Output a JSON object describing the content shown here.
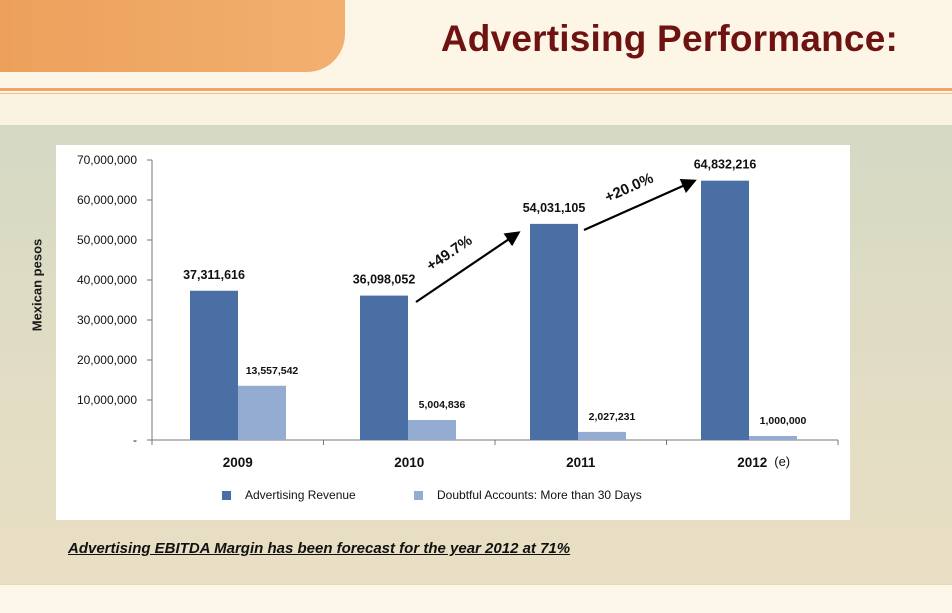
{
  "header": {
    "title": "Advertising Performance:"
  },
  "footnote": "Advertising EBITDA Margin has been forecast for the year 2012 at 71%",
  "colors": {
    "revenue": "#4a6fa5",
    "doubtful": "#94acd1",
    "title": "#6e1212",
    "accent_orange": "#eca05a"
  },
  "chart_data": {
    "type": "bar",
    "ylabel": "Mexican pesos",
    "xlabel": "",
    "categories": [
      "2009",
      "2010",
      "2011",
      "2012"
    ],
    "category_note": "(e)",
    "ylim": [
      0,
      70000000
    ],
    "yticks": [
      0,
      10000000,
      20000000,
      30000000,
      40000000,
      50000000,
      60000000,
      70000000
    ],
    "ytick_labels": [
      "-",
      "10,000,000",
      "20,000,000",
      "30,000,000",
      "40,000,000",
      "50,000,000",
      "60,000,000",
      "70,000,000"
    ],
    "grid": false,
    "legend": "bottom",
    "series": [
      {
        "name": "Advertising Revenue",
        "values": [
          37311616,
          36098052,
          54031105,
          64832216
        ],
        "labels": [
          "37,311,616",
          "36,098,052",
          "54,031,105",
          "64,832,216"
        ]
      },
      {
        "name": "Doubtful Accounts: More than 30 Days",
        "values": [
          13557542,
          5004836,
          2027231,
          1000000
        ],
        "labels": [
          "13,557,542",
          "5,004,836",
          "2,027,231",
          "1,000,000"
        ]
      }
    ],
    "annotations": [
      {
        "text": "+49.7%",
        "from": "2010",
        "to": "2011"
      },
      {
        "text": "+20.0%",
        "from": "2011",
        "to": "2012"
      }
    ]
  }
}
